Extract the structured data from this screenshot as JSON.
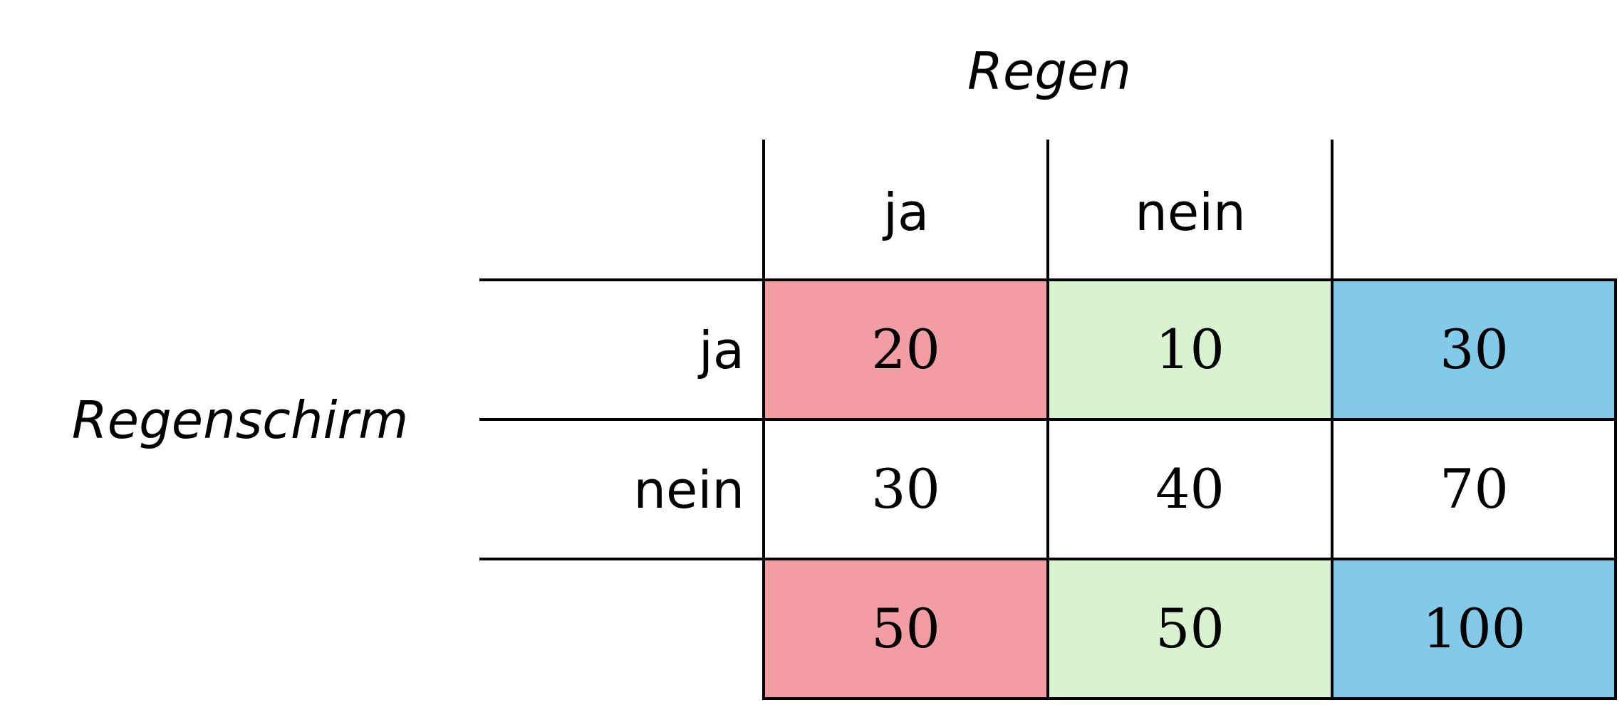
{
  "table": {
    "column_variable": "Regen",
    "row_variable": "Regenschirm",
    "column_headers": [
      "ja",
      "nein",
      ""
    ],
    "row_headers": [
      "ja",
      "nein",
      ""
    ],
    "rows": [
      [
        "20",
        "10",
        "30"
      ],
      [
        "30",
        "40",
        "70"
      ],
      [
        "50",
        "50",
        "100"
      ]
    ]
  },
  "colors": {
    "ja_column": "#f29ca3",
    "nein_column": "#d9f2d0",
    "total_column": "#83c9ea",
    "plain": "#ffffff",
    "lines": "#000000"
  }
}
